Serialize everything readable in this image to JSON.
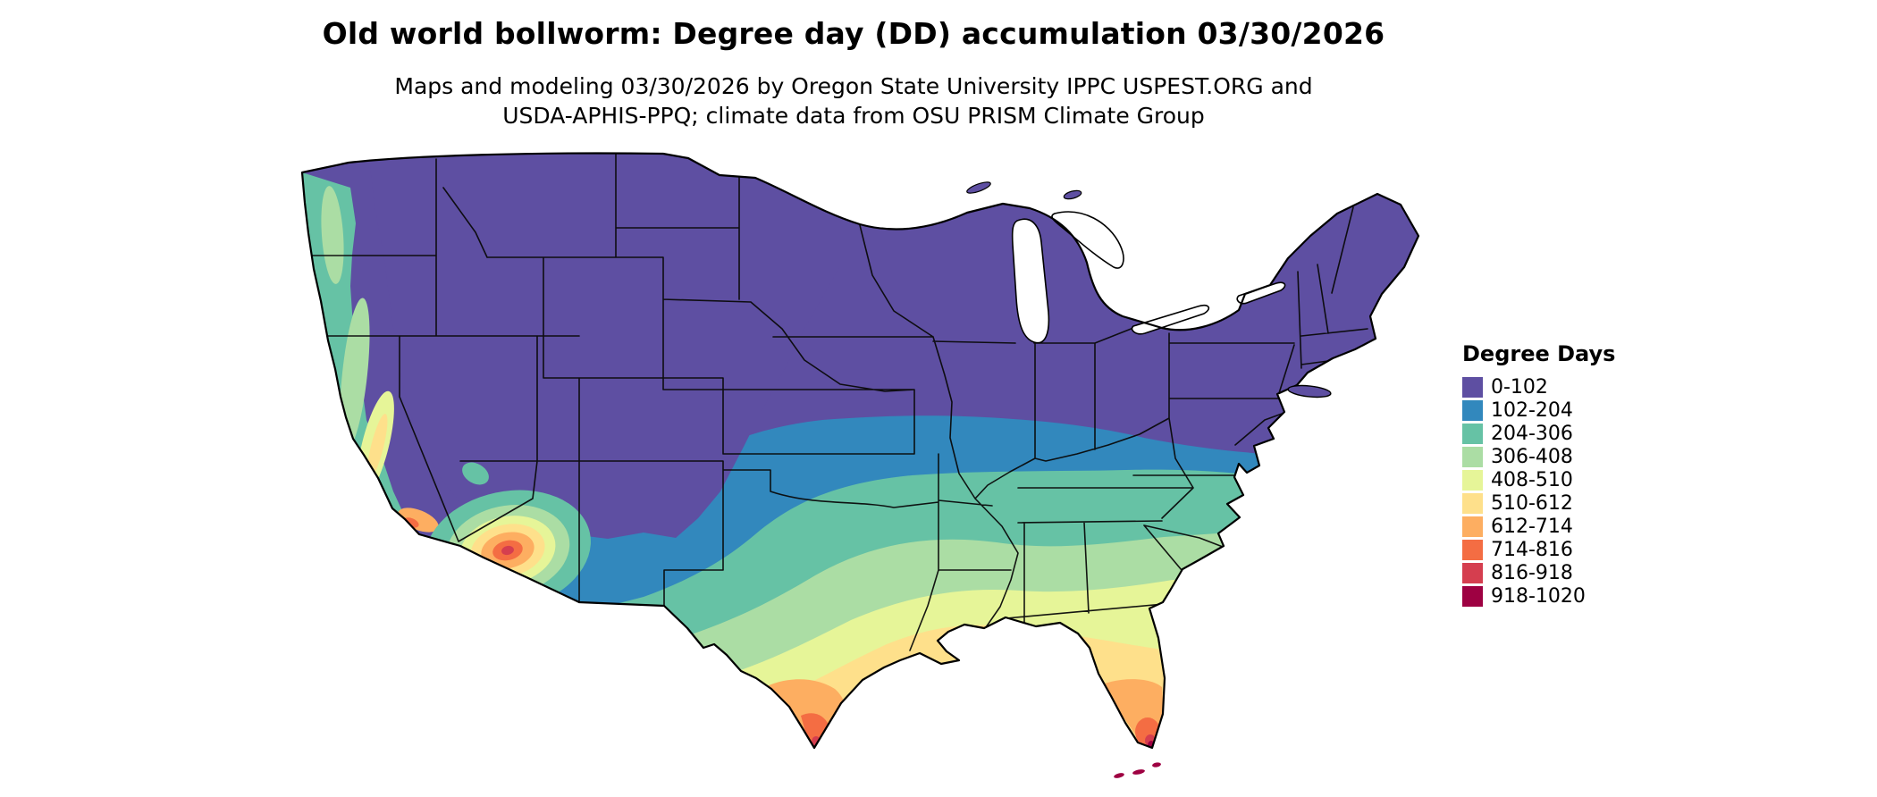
{
  "title": "Old world bollworm: Degree day (DD) accumulation 03/30/2026",
  "subtitle_line1": "Maps and modeling 03/30/2026 by Oregon State University IPPC USPEST.ORG and",
  "subtitle_line2": "USDA-APHIS-PPQ; climate data from OSU PRISM Climate Group",
  "map": {
    "name": "Continental United States degree-day accumulation choropleth",
    "model_date": "03/30/2026",
    "border_color": "#000000",
    "background": "#ffffff"
  },
  "palette": {
    "dd0": "#5E4FA2",
    "dd1": "#3288BD",
    "dd2": "#66C2A5",
    "dd3": "#ABDDA4",
    "dd4": "#E6F598",
    "dd5": "#FEE08B",
    "dd6": "#FDAE61",
    "dd7": "#F46D43",
    "dd8": "#D53E4F",
    "dd9": "#9E0142"
  },
  "legend": {
    "title": "Degree Days",
    "items": [
      {
        "label": "0-102",
        "color": "#5E4FA2"
      },
      {
        "label": "102-204",
        "color": "#3288BD"
      },
      {
        "label": "204-306",
        "color": "#66C2A5"
      },
      {
        "label": "306-408",
        "color": "#ABDDA4"
      },
      {
        "label": "408-510",
        "color": "#E6F598"
      },
      {
        "label": "510-612",
        "color": "#FEE08B"
      },
      {
        "label": "612-714",
        "color": "#FDAE61"
      },
      {
        "label": "714-816",
        "color": "#F46D43"
      },
      {
        "label": "816-918",
        "color": "#D53E4F"
      },
      {
        "label": "918-1020",
        "color": "#9E0142"
      }
    ]
  }
}
